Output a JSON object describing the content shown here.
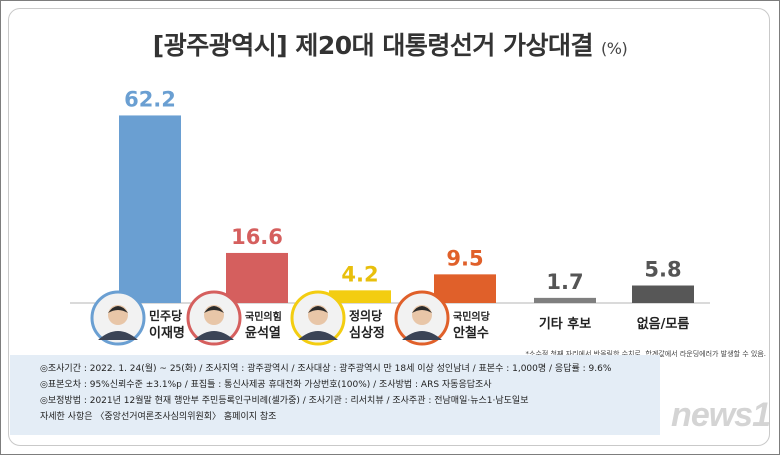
{
  "header": {
    "title": "[광주광역시] 제20대 대통령선거 가상대결",
    "unit": "(%)"
  },
  "chart_data": {
    "type": "bar",
    "categories": [
      "이재명",
      "윤석열",
      "심상정",
      "안철수",
      "기타 후보",
      "없음/모름"
    ],
    "values": [
      62.2,
      16.6,
      4.2,
      9.5,
      1.7,
      5.8
    ],
    "bar_colors": [
      "#6a9fd2",
      "#d55f5e",
      "#f3cd11",
      "#e0602a",
      "#7f7f7f",
      "#575757"
    ],
    "value_label_colors": [
      "#6a9fd2",
      "#d55f5e",
      "#e8bf0c",
      "#e0602a",
      "#555555",
      "#555555"
    ],
    "ylim": [
      0,
      65
    ],
    "candidates": [
      {
        "party": "민주당",
        "name": "이재명"
      },
      {
        "party": "국민의힘",
        "name": "윤석열"
      },
      {
        "party": "정의당",
        "name": "심상정"
      },
      {
        "party": "국민의당",
        "name": "안철수"
      },
      {
        "party": "",
        "name": "기타 후보"
      },
      {
        "party": "",
        "name": "없음/모름"
      }
    ]
  },
  "footnote": "*소수점 첫째 자리에서 반올림한 수치로, 합계값에서 라운딩에러가 발생할 수 있음.",
  "notes": [
    "◎조사기간 : 2022. 1. 24(월) ~ 25(화) / 조사지역 : 광주광역시 / 조사대상 : 광주광역시 만 18세 이상 성인남녀 / 표본수 : 1,000명 / 응답률 : 9.6%",
    "◎표본오차 : 95%신뢰수준 ±3.1%p  / 표집틀 : 통신사제공 휴대전화 가상번호(100%) / 조사방법 : ARS 자동응답조사",
    "◎보정방법 : 2021년 12월말 현재 행안부 주민등록인구비례(셀가중) / 조사기관 : 리서치뷰 / 조사주관 : 전남매일·뉴스1·남도일보",
    "자세한 사항은 〈중앙선거여론조사심의위원회〉 홈페이지 참조"
  ],
  "watermark": "news1"
}
